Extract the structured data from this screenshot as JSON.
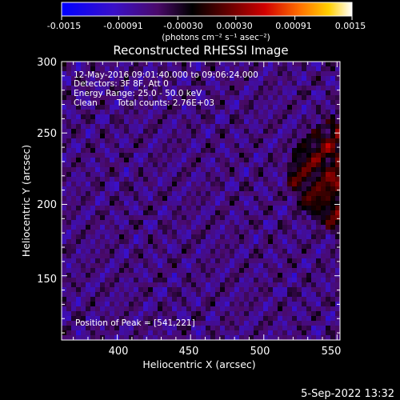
{
  "chart_data": {
    "type": "heatmap",
    "title": "Reconstructed RHESSI Image",
    "xlabel": "Heliocentric X (arcsec)",
    "ylabel": "Heliocentric Y (arcsec)",
    "xlim": [
      362,
      552
    ],
    "ylim": [
      105,
      300
    ],
    "xticks": [
      400,
      450,
      500,
      550
    ],
    "yticks": [
      150,
      200,
      250,
      300
    ],
    "colorbar": {
      "ticks": [
        "-0.0015",
        "-0.00091",
        "-0.00030",
        "0.00030",
        "0.00091",
        "0.0015"
      ],
      "tick_values": [
        -0.0015,
        -0.00091,
        -0.0003,
        0.0003,
        0.00091,
        0.0015
      ],
      "range": [
        -0.0015,
        0.0015
      ],
      "unit_text": "(photons cm⁻² s⁻¹ asec⁻²)"
    },
    "annotations": {
      "time_range": "12-May-2016 09:01:40.000 to 09:06:24.000",
      "detectors": "Detectors: 3F 8F, Att 0",
      "energy": "Energy Range: 25.0 - 50.0 keV",
      "method": "Clean",
      "total_counts": "Total counts: 2.76E+03",
      "peak": "Position of Peak = [541,221]"
    },
    "peak": {
      "x": 541,
      "y": 221
    },
    "grid": false
  },
  "footer": {
    "date": "5-Sep-2022 13:32"
  }
}
